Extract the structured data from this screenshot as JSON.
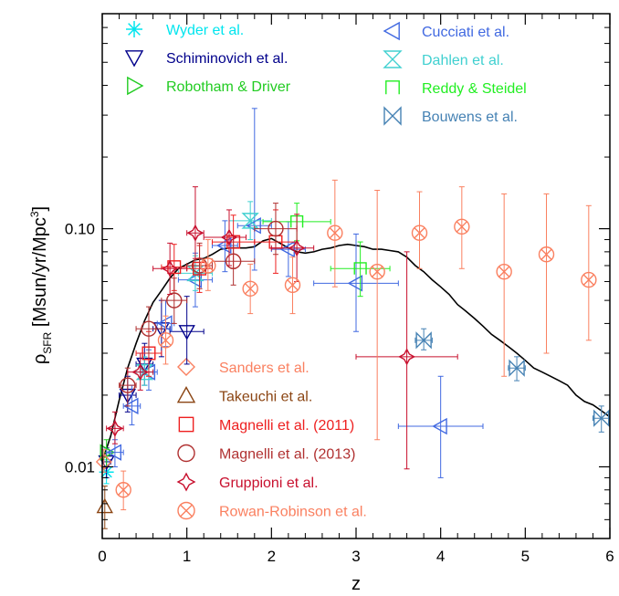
{
  "chart_data": {
    "type": "scatter",
    "xlabel": "z",
    "ylabel_main": "ρ",
    "ylabel_sub": "SFR",
    "ylabel_unit": " [Msun/yr/Mpc",
    "ylabel_sup": "3",
    "ylabel_close": "]",
    "xlim": [
      0,
      6
    ],
    "ylim": [
      0.005,
      0.8
    ],
    "yscale": "log",
    "x_ticks": [
      0,
      1,
      2,
      3,
      4,
      5,
      6
    ],
    "x_tick_labels": [
      "0",
      "1",
      "2",
      "3",
      "4",
      "5",
      "6"
    ],
    "y_ticks": [
      0.01,
      0.1
    ],
    "y_tick_labels": [
      "0.01",
      "0.10"
    ],
    "grid": false,
    "legend_placement": [
      "top",
      "bottom-left"
    ],
    "series": [
      {
        "name": "Wyder et al.",
        "color": "#00e5ee",
        "marker": "asterisk",
        "legend": "top-left",
        "points": [
          {
            "x": 0.05,
            "y": 0.0095,
            "ylo": 0.0085,
            "yhi": 0.0107
          }
        ]
      },
      {
        "name": "Schiminovich et al.",
        "color": "#00008b",
        "marker": "tri-down",
        "legend": "top-left",
        "points": [
          {
            "x": 0.05,
            "y": 0.0105,
            "xlo": 0.0,
            "xhi": 0.1,
            "ylo": 0.009,
            "yhi": 0.012
          },
          {
            "x": 0.3,
            "y": 0.02,
            "xlo": 0.2,
            "xhi": 0.4,
            "ylo": 0.017,
            "yhi": 0.024
          },
          {
            "x": 0.5,
            "y": 0.027,
            "xlo": 0.4,
            "xhi": 0.6,
            "ylo": 0.022,
            "yhi": 0.033
          },
          {
            "x": 0.7,
            "y": 0.038,
            "xlo": 0.6,
            "xhi": 0.8,
            "ylo": 0.029,
            "yhi": 0.05
          },
          {
            "x": 1.0,
            "y": 0.037,
            "xlo": 0.8,
            "xhi": 1.2,
            "ylo": 0.027,
            "yhi": 0.052
          }
        ]
      },
      {
        "name": "Robotham & Driver",
        "color": "#22cc22",
        "marker": "tri-right",
        "legend": "top-left",
        "points": [
          {
            "x": 0.05,
            "y": 0.0115,
            "xlo": 0.02,
            "xhi": 0.08,
            "ylo": 0.01,
            "yhi": 0.013
          }
        ]
      },
      {
        "name": "Cucciati et al.",
        "color": "#4169e1",
        "marker": "tri-left",
        "legend": "top-right",
        "points": [
          {
            "x": 0.15,
            "y": 0.0115,
            "xlo": 0.05,
            "xhi": 0.25,
            "ylo": 0.01,
            "yhi": 0.013
          },
          {
            "x": 0.35,
            "y": 0.018,
            "xlo": 0.25,
            "xhi": 0.45,
            "ylo": 0.015,
            "yhi": 0.022
          },
          {
            "x": 0.55,
            "y": 0.025,
            "xlo": 0.45,
            "xhi": 0.65,
            "ylo": 0.021,
            "yhi": 0.031
          },
          {
            "x": 0.75,
            "y": 0.04,
            "xlo": 0.65,
            "xhi": 0.85,
            "ylo": 0.032,
            "yhi": 0.05
          },
          {
            "x": 1.1,
            "y": 0.061,
            "xlo": 0.9,
            "xhi": 1.3,
            "ylo": 0.047,
            "yhi": 0.079
          },
          {
            "x": 1.45,
            "y": 0.085,
            "xlo": 1.3,
            "xhi": 1.6,
            "ylo": 0.066,
            "yhi": 0.108
          },
          {
            "x": 1.8,
            "y": 0.103,
            "xlo": 1.6,
            "xhi": 2.0,
            "ylo": 0.067,
            "yhi": 0.32
          },
          {
            "x": 2.2,
            "y": 0.082,
            "xlo": 2.0,
            "xhi": 2.4,
            "ylo": 0.063,
            "yhi": 0.107
          },
          {
            "x": 3.0,
            "y": 0.059,
            "xlo": 2.5,
            "xhi": 3.5,
            "ylo": 0.037,
            "yhi": 0.095
          },
          {
            "x": 4.0,
            "y": 0.0148,
            "xlo": 3.5,
            "xhi": 4.5,
            "ylo": 0.009,
            "yhi": 0.024
          }
        ]
      },
      {
        "name": "Dahlen et al.",
        "color": "#40d0d0",
        "marker": "hourglass",
        "legend": "top-right",
        "points": [
          {
            "x": 0.5,
            "y": 0.025,
            "xlo": 0.4,
            "xhi": 0.6,
            "ylo": 0.022,
            "yhi": 0.029
          },
          {
            "x": 1.1,
            "y": 0.065,
            "xlo": 0.9,
            "xhi": 1.3,
            "ylo": 0.055,
            "yhi": 0.077
          },
          {
            "x": 1.75,
            "y": 0.108,
            "xlo": 1.5,
            "xhi": 2.0,
            "ylo": 0.09,
            "yhi": 0.13
          }
        ]
      },
      {
        "name": "Reddy & Steidel",
        "color": "#22ee22",
        "marker": "bracket",
        "legend": "top-right",
        "points": [
          {
            "x": 2.3,
            "y": 0.107,
            "xlo": 1.9,
            "xhi": 2.7,
            "ylo": 0.089,
            "yhi": 0.128
          },
          {
            "x": 3.05,
            "y": 0.068,
            "xlo": 2.7,
            "xhi": 3.4,
            "ylo": 0.052,
            "yhi": 0.088
          }
        ]
      },
      {
        "name": "Bouwens et al.",
        "color": "#4682b4",
        "marker": "bowtie",
        "legend": "top-right",
        "points": [
          {
            "x": 3.8,
            "y": 0.034,
            "xlo": 3.7,
            "xhi": 3.9,
            "ylo": 0.031,
            "yhi": 0.038
          },
          {
            "x": 4.9,
            "y": 0.026,
            "xlo": 4.8,
            "xhi": 5.0,
            "ylo": 0.023,
            "yhi": 0.029
          },
          {
            "x": 5.9,
            "y": 0.016,
            "xlo": 5.8,
            "xhi": 6.0,
            "ylo": 0.014,
            "yhi": 0.018
          }
        ]
      },
      {
        "name": "Sanders et al.",
        "color": "#fa8060",
        "marker": "diamond",
        "legend": "bottom-left",
        "points": [
          {
            "x": 0.02,
            "y": 0.0105,
            "ylo": 0.0095,
            "yhi": 0.0118
          }
        ]
      },
      {
        "name": "Takeuchi et al.",
        "color": "#8b4513",
        "marker": "tri-up",
        "legend": "bottom-left",
        "points": [
          {
            "x": 0.03,
            "y": 0.0068,
            "ylo": 0.0055,
            "yhi": 0.0083
          }
        ]
      },
      {
        "name": "Magnelli et al. (2011)",
        "color": "#ee2020",
        "marker": "square",
        "legend": "bottom-left",
        "points": [
          {
            "x": 0.55,
            "y": 0.03,
            "xlo": 0.4,
            "xhi": 0.7,
            "ylo": 0.024,
            "yhi": 0.037
          },
          {
            "x": 0.85,
            "y": 0.069,
            "xlo": 0.7,
            "xhi": 1.0,
            "ylo": 0.055,
            "yhi": 0.086
          },
          {
            "x": 1.15,
            "y": 0.068,
            "xlo": 1.0,
            "xhi": 1.3,
            "ylo": 0.054,
            "yhi": 0.085
          },
          {
            "x": 1.55,
            "y": 0.088,
            "xlo": 1.3,
            "xhi": 1.8,
            "ylo": 0.068,
            "yhi": 0.114
          },
          {
            "x": 2.05,
            "y": 0.088,
            "xlo": 1.8,
            "xhi": 2.3,
            "ylo": 0.065,
            "yhi": 0.12
          }
        ]
      },
      {
        "name": "Magnelli et al. (2013)",
        "color": "#b03030",
        "marker": "circle",
        "legend": "bottom-left",
        "points": [
          {
            "x": 0.3,
            "y": 0.022,
            "xlo": 0.2,
            "xhi": 0.4,
            "ylo": 0.018,
            "yhi": 0.026
          },
          {
            "x": 0.55,
            "y": 0.038,
            "xlo": 0.4,
            "xhi": 0.7,
            "ylo": 0.03,
            "yhi": 0.047
          },
          {
            "x": 0.85,
            "y": 0.05,
            "xlo": 0.7,
            "xhi": 1.0,
            "ylo": 0.04,
            "yhi": 0.062
          },
          {
            "x": 1.15,
            "y": 0.07,
            "xlo": 1.0,
            "xhi": 1.3,
            "ylo": 0.056,
            "yhi": 0.087
          },
          {
            "x": 1.55,
            "y": 0.073,
            "xlo": 1.3,
            "xhi": 1.8,
            "ylo": 0.058,
            "yhi": 0.092
          },
          {
            "x": 2.05,
            "y": 0.1,
            "xlo": 1.8,
            "xhi": 2.3,
            "ylo": 0.078,
            "yhi": 0.128
          }
        ]
      },
      {
        "name": "Gruppioni et al.",
        "color": "#c8102e",
        "marker": "star4",
        "legend": "bottom-left",
        "points": [
          {
            "x": 0.15,
            "y": 0.0145,
            "xlo": 0.05,
            "xhi": 0.25,
            "ylo": 0.0125,
            "yhi": 0.017
          },
          {
            "x": 0.45,
            "y": 0.025,
            "xlo": 0.3,
            "xhi": 0.6,
            "ylo": 0.021,
            "yhi": 0.03
          },
          {
            "x": 0.8,
            "y": 0.068,
            "xlo": 0.6,
            "xhi": 1.0,
            "ylo": 0.053,
            "yhi": 0.087
          },
          {
            "x": 1.1,
            "y": 0.096,
            "xlo": 1.0,
            "xhi": 1.2,
            "ylo": 0.075,
            "yhi": 0.15
          },
          {
            "x": 1.5,
            "y": 0.092,
            "xlo": 1.2,
            "xhi": 1.7,
            "ylo": 0.07,
            "yhi": 0.12
          },
          {
            "x": 2.3,
            "y": 0.083,
            "xlo": 2.0,
            "xhi": 2.5,
            "ylo": 0.06,
            "yhi": 0.115
          },
          {
            "x": 3.6,
            "y": 0.029,
            "xlo": 3.0,
            "xhi": 4.2,
            "ylo": 0.0098,
            "yhi": 0.08
          }
        ]
      },
      {
        "name": "Rowan-Robinson et al.",
        "color": "#fa8060",
        "marker": "circle-x",
        "legend": "bottom-left",
        "points": [
          {
            "x": 0.25,
            "y": 0.008,
            "ylo": 0.0066,
            "yhi": 0.0096
          },
          {
            "x": 0.75,
            "y": 0.034,
            "ylo": 0.027,
            "yhi": 0.043
          },
          {
            "x": 1.25,
            "y": 0.07,
            "ylo": 0.055,
            "yhi": 0.09
          },
          {
            "x": 1.75,
            "y": 0.056,
            "ylo": 0.044,
            "yhi": 0.071
          },
          {
            "x": 2.25,
            "y": 0.058,
            "ylo": 0.044,
            "yhi": 0.076
          },
          {
            "x": 2.75,
            "y": 0.096,
            "ylo": 0.057,
            "yhi": 0.16
          },
          {
            "x": 3.25,
            "y": 0.066,
            "ylo": 0.013,
            "yhi": 0.145
          },
          {
            "x": 3.75,
            "y": 0.096,
            "ylo": 0.068,
            "yhi": 0.143
          },
          {
            "x": 4.25,
            "y": 0.102,
            "ylo": 0.068,
            "yhi": 0.15
          },
          {
            "x": 4.75,
            "y": 0.066,
            "ylo": 0.024,
            "yhi": 0.14
          },
          {
            "x": 5.25,
            "y": 0.078,
            "ylo": 0.03,
            "yhi": 0.14
          },
          {
            "x": 5.75,
            "y": 0.061,
            "ylo": 0.034,
            "yhi": 0.125
          }
        ]
      }
    ],
    "model_curve": {
      "color": "#000000",
      "x": [
        0.0,
        0.1,
        0.2,
        0.3,
        0.4,
        0.5,
        0.6,
        0.7,
        0.8,
        0.9,
        1.0,
        1.1,
        1.2,
        1.3,
        1.4,
        1.5,
        1.6,
        1.7,
        1.8,
        1.9,
        2.0,
        2.1,
        2.2,
        2.3,
        2.4,
        2.5,
        2.6,
        2.7,
        2.8,
        2.9,
        3.0,
        3.1,
        3.2,
        3.3,
        3.4,
        3.5,
        3.6,
        3.7,
        3.8,
        3.9,
        4.0,
        4.1,
        4.2,
        4.3,
        4.4,
        4.5,
        4.6,
        4.7,
        4.8,
        4.9,
        5.0,
        5.1,
        5.2,
        5.3,
        5.4,
        5.5,
        5.6,
        5.7,
        5.8,
        5.9,
        6.0
      ],
      "y": [
        0.0105,
        0.0135,
        0.019,
        0.026,
        0.033,
        0.041,
        0.049,
        0.055,
        0.062,
        0.068,
        0.071,
        0.074,
        0.075,
        0.078,
        0.082,
        0.083,
        0.083,
        0.083,
        0.084,
        0.089,
        0.091,
        0.087,
        0.083,
        0.08,
        0.079,
        0.08,
        0.082,
        0.083,
        0.085,
        0.086,
        0.085,
        0.084,
        0.082,
        0.082,
        0.081,
        0.08,
        0.076,
        0.07,
        0.066,
        0.061,
        0.057,
        0.053,
        0.048,
        0.045,
        0.042,
        0.039,
        0.036,
        0.034,
        0.032,
        0.03,
        0.028,
        0.026,
        0.025,
        0.024,
        0.023,
        0.022,
        0.02,
        0.0188,
        0.0182,
        0.0172,
        0.0162
      ]
    }
  }
}
